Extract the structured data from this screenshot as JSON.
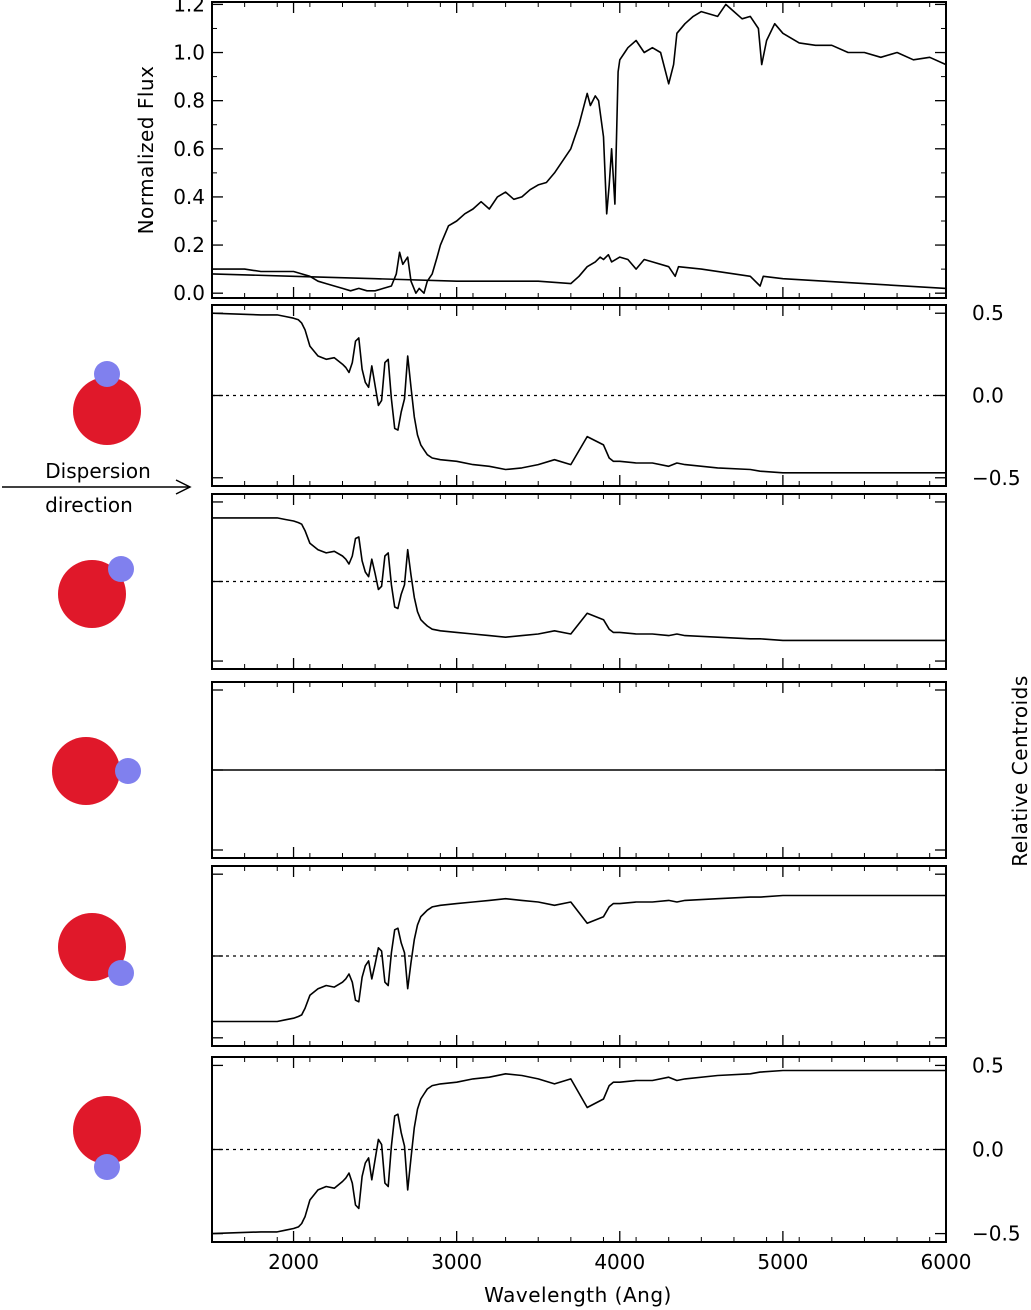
{
  "chart_data": [
    {
      "type": "line",
      "ylabel": "Normalized Flux",
      "ylim": [
        -0.02,
        1.21
      ],
      "y_ticks": [
        "0.0",
        "0.2",
        "0.4",
        "0.6",
        "0.8",
        "1.0",
        "1.2"
      ],
      "series": [
        {
          "x": [
            1500,
            1600,
            1700,
            1800,
            1900,
            2000,
            2050,
            2100,
            2150,
            2200,
            2250,
            2300,
            2350,
            2400,
            2450,
            2500,
            2550,
            2600,
            2630,
            2650,
            2670,
            2700,
            2720,
            2750,
            2770,
            2800,
            2820,
            2850,
            2880,
            2900,
            2950,
            3000,
            3050,
            3100,
            3150,
            3200,
            3250,
            3300,
            3350,
            3400,
            3450,
            3500,
            3550,
            3600,
            3650,
            3700,
            3750,
            3800,
            3820,
            3850,
            3870,
            3900,
            3920,
            3935,
            3950,
            3970,
            3990,
            4000,
            4030,
            4050,
            4100,
            4150,
            4200,
            4250,
            4300,
            4330,
            4350,
            4400,
            4450,
            4500,
            4550,
            4600,
            4650,
            4700,
            4750,
            4800,
            4850,
            4870,
            4900,
            4950,
            5000,
            5100,
            5200,
            5300,
            5400,
            5500,
            5600,
            5700,
            5800,
            5900,
            6000
          ],
          "values": [
            0.1,
            0.1,
            0.1,
            0.09,
            0.09,
            0.09,
            0.08,
            0.07,
            0.05,
            0.04,
            0.03,
            0.02,
            0.01,
            0.02,
            0.01,
            0.01,
            0.02,
            0.03,
            0.08,
            0.17,
            0.12,
            0.15,
            0.05,
            0.0,
            0.02,
            0.0,
            0.05,
            0.08,
            0.15,
            0.2,
            0.28,
            0.3,
            0.33,
            0.35,
            0.38,
            0.35,
            0.4,
            0.42,
            0.39,
            0.4,
            0.43,
            0.45,
            0.46,
            0.5,
            0.55,
            0.6,
            0.7,
            0.83,
            0.78,
            0.82,
            0.8,
            0.65,
            0.33,
            0.45,
            0.6,
            0.37,
            0.92,
            0.97,
            1.0,
            1.02,
            1.05,
            1.0,
            1.02,
            1.0,
            0.87,
            0.95,
            1.08,
            1.12,
            1.15,
            1.17,
            1.16,
            1.15,
            1.2,
            1.17,
            1.14,
            1.15,
            1.1,
            0.95,
            1.05,
            1.12,
            1.08,
            1.04,
            1.03,
            1.03,
            1.0,
            1.0,
            0.98,
            1.0,
            0.97,
            0.98,
            0.95
          ]
        },
        {
          "x": [
            1500,
            2000,
            2500,
            3000,
            3500,
            3700,
            3750,
            3800,
            3850,
            3880,
            3900,
            3930,
            3950,
            4000,
            4050,
            4100,
            4150,
            4200,
            4300,
            4340,
            4360,
            4500,
            4800,
            4860,
            4880,
            5000,
            5500,
            6000
          ],
          "values": [
            0.08,
            0.07,
            0.06,
            0.05,
            0.05,
            0.04,
            0.07,
            0.11,
            0.13,
            0.15,
            0.14,
            0.16,
            0.13,
            0.15,
            0.14,
            0.1,
            0.14,
            0.13,
            0.11,
            0.07,
            0.11,
            0.1,
            0.07,
            0.03,
            0.07,
            0.06,
            0.04,
            0.02
          ]
        }
      ]
    },
    {
      "type": "line",
      "ylim": [
        -0.55,
        0.55
      ],
      "y_ticks": [
        "0.5",
        "0.0",
        "−0.5"
      ],
      "values": [
        0.5,
        0.49,
        0.49,
        0.48,
        0.47,
        0.46,
        0.44,
        0.42,
        0.4,
        0.3,
        0.24,
        0.22,
        0.23,
        0.19,
        0.17,
        0.14,
        0.2,
        0.33,
        0.35,
        0.16,
        0.08,
        0.05,
        0.18,
        0.06,
        -0.06,
        -0.03,
        0.2,
        0.22,
        -0.02,
        -0.2,
        -0.21,
        -0.1,
        -0.02,
        0.24,
        0.05,
        -0.13,
        -0.24,
        -0.3,
        -0.33,
        -0.36,
        -0.38,
        -0.39,
        -0.4,
        -0.42,
        -0.43,
        -0.45,
        -0.44,
        -0.42,
        -0.39,
        -0.42,
        -0.25,
        -0.3,
        -0.38,
        -0.4,
        -0.4,
        -0.41,
        -0.41,
        -0.43,
        -0.41,
        -0.42,
        -0.44,
        -0.45,
        -0.46,
        -0.47,
        -0.47
      ]
    },
    {
      "type": "line",
      "ylim": [
        -0.55,
        0.55
      ],
      "values": [
        0.4,
        0.4,
        0.4,
        0.39,
        0.38,
        0.37,
        0.36,
        0.34,
        0.32,
        0.24,
        0.2,
        0.18,
        0.19,
        0.16,
        0.14,
        0.11,
        0.16,
        0.27,
        0.28,
        0.13,
        0.06,
        0.03,
        0.14,
        0.05,
        -0.05,
        -0.03,
        0.16,
        0.18,
        -0.02,
        -0.16,
        -0.17,
        -0.08,
        -0.02,
        0.2,
        0.04,
        -0.1,
        -0.19,
        -0.24,
        -0.26,
        -0.28,
        -0.3,
        -0.31,
        -0.32,
        -0.33,
        -0.34,
        -0.35,
        -0.34,
        -0.33,
        -0.31,
        -0.33,
        -0.2,
        -0.24,
        -0.3,
        -0.32,
        -0.32,
        -0.33,
        -0.33,
        -0.34,
        -0.33,
        -0.34,
        -0.35,
        -0.36,
        -0.36,
        -0.37,
        -0.37
      ]
    },
    {
      "type": "line",
      "ylim": [
        -0.55,
        0.55
      ],
      "values": [
        0.0,
        0.0
      ]
    },
    {
      "type": "line",
      "ylim": [
        -0.55,
        0.55
      ],
      "values": [
        -0.4,
        -0.4,
        -0.4,
        -0.39,
        -0.38,
        -0.37,
        -0.36,
        -0.34,
        -0.32,
        -0.24,
        -0.2,
        -0.18,
        -0.19,
        -0.16,
        -0.14,
        -0.11,
        -0.16,
        -0.27,
        -0.28,
        -0.13,
        -0.06,
        -0.03,
        -0.14,
        -0.05,
        0.05,
        0.03,
        -0.16,
        -0.18,
        0.02,
        0.16,
        0.17,
        0.08,
        0.02,
        -0.2,
        -0.04,
        0.1,
        0.19,
        0.24,
        0.26,
        0.28,
        0.3,
        0.31,
        0.32,
        0.33,
        0.34,
        0.35,
        0.34,
        0.33,
        0.31,
        0.33,
        0.2,
        0.24,
        0.3,
        0.32,
        0.32,
        0.33,
        0.33,
        0.34,
        0.33,
        0.34,
        0.35,
        0.36,
        0.36,
        0.37,
        0.37
      ]
    },
    {
      "type": "line",
      "ylim": [
        -0.55,
        0.55
      ],
      "y_ticks": [
        "0.5",
        "0.0",
        "−0.5"
      ],
      "values": [
        -0.5,
        -0.49,
        -0.49,
        -0.48,
        -0.47,
        -0.46,
        -0.44,
        -0.42,
        -0.4,
        -0.3,
        -0.24,
        -0.22,
        -0.23,
        -0.19,
        -0.17,
        -0.14,
        -0.2,
        -0.33,
        -0.35,
        -0.16,
        -0.08,
        -0.05,
        -0.18,
        -0.06,
        0.06,
        0.03,
        -0.2,
        -0.22,
        0.02,
        0.2,
        0.21,
        0.1,
        0.02,
        -0.24,
        -0.05,
        0.13,
        0.24,
        0.3,
        0.33,
        0.36,
        0.38,
        0.39,
        0.4,
        0.42,
        0.43,
        0.45,
        0.44,
        0.42,
        0.39,
        0.42,
        0.25,
        0.3,
        0.38,
        0.4,
        0.4,
        0.41,
        0.41,
        0.43,
        0.41,
        0.42,
        0.44,
        0.45,
        0.46,
        0.47,
        0.47
      ]
    }
  ],
  "shared": {
    "x_centroid": [
      1500,
      1800,
      1900,
      1950,
      2000,
      2030,
      2050,
      2060,
      2070,
      2100,
      2150,
      2200,
      2250,
      2300,
      2320,
      2340,
      2360,
      2380,
      2400,
      2420,
      2440,
      2460,
      2480,
      2500,
      2520,
      2540,
      2560,
      2580,
      2600,
      2620,
      2640,
      2660,
      2680,
      2700,
      2720,
      2740,
      2760,
      2780,
      2800,
      2820,
      2850,
      2900,
      3000,
      3100,
      3200,
      3300,
      3400,
      3500,
      3600,
      3700,
      3800,
      3900,
      3935,
      3960,
      4000,
      4100,
      4200,
      4300,
      4350,
      4400,
      4600,
      4800,
      4860,
      5000,
      6000
    ],
    "x_ticks": [
      "2000",
      "3000",
      "4000",
      "5000",
      "6000"
    ],
    "xlim": [
      1500,
      6000
    ],
    "xlabel": "Wavelength (Ang)",
    "right_ylabel": "Relative Centroids"
  },
  "annotations": {
    "dispersion_line1": "Dispersion",
    "dispersion_line2": "direction"
  },
  "colors": {
    "primary_star": "#e0182a",
    "companion_star": "#8080ee",
    "line": "#000000"
  }
}
